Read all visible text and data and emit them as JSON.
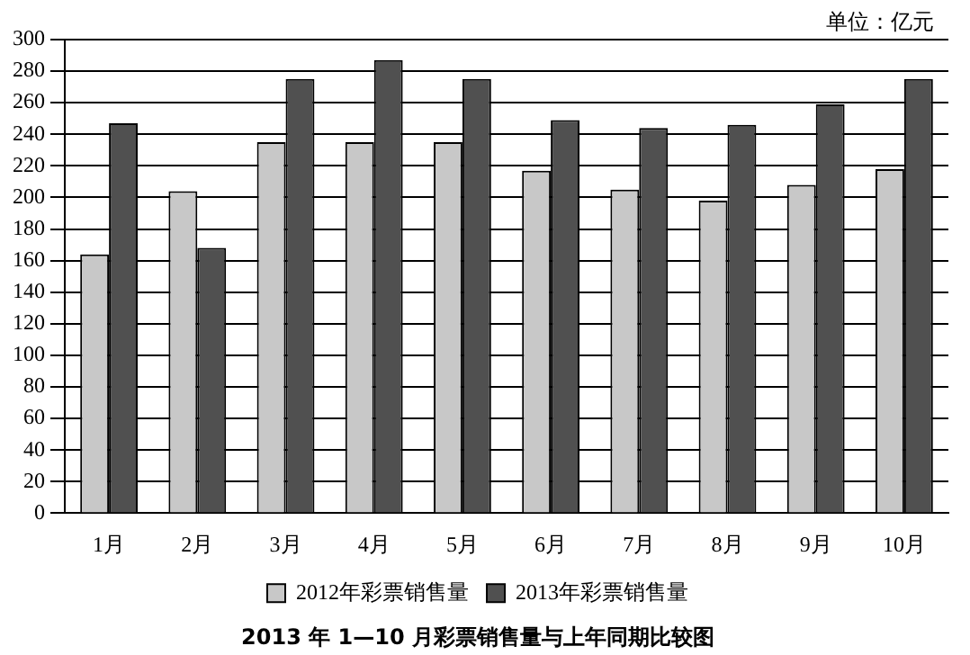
{
  "chart_data": {
    "type": "bar",
    "title": "2013 年 1—10 月彩票销售量与上年同期比较图",
    "annotations": [
      "单位：亿元"
    ],
    "categories": [
      "1月",
      "2月",
      "3月",
      "4月",
      "5月",
      "6月",
      "7月",
      "8月",
      "9月",
      "10月"
    ],
    "series": [
      {
        "name": "2012年彩票销售量",
        "color": "#c8c8c8",
        "values": [
          164,
          204,
          235,
          235,
          235,
          217,
          205,
          198,
          208,
          218
        ]
      },
      {
        "name": "2013年彩票销售量",
        "color": "#505050",
        "values": [
          247,
          168,
          275,
          287,
          275,
          249,
          244,
          246,
          259,
          275
        ]
      }
    ],
    "ylim": [
      0,
      300
    ],
    "yticks": [
      0,
      20,
      40,
      60,
      80,
      100,
      120,
      140,
      160,
      180,
      200,
      220,
      240,
      260,
      280,
      300
    ],
    "grid": "y",
    "legend": "bottom"
  }
}
